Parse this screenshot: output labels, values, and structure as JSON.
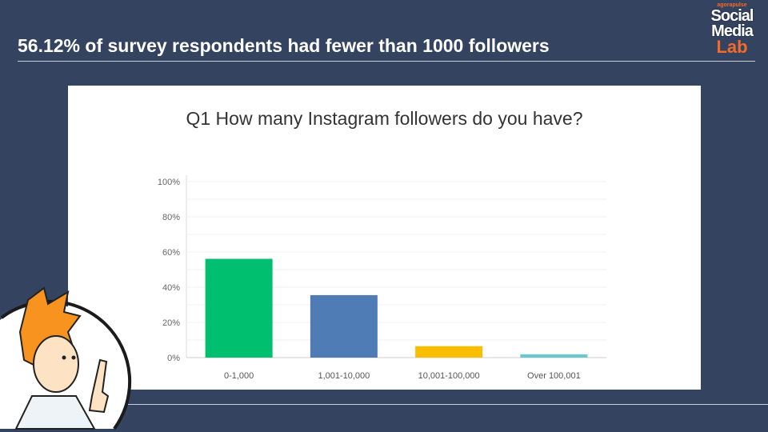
{
  "headline": "56.12% of survey respondents had fewer than 1000 followers",
  "logo": {
    "brand": "agorapulse",
    "line1": "Social",
    "line2": "Media",
    "line3": "Lab"
  },
  "chart_data": {
    "type": "bar",
    "title": "Q1 How many Instagram followers do you have?",
    "categories": [
      "0-1,000",
      "1,001-10,000",
      "10,001-100,000",
      "Over 100,001"
    ],
    "values": [
      56.12,
      35.5,
      6.5,
      1.9
    ],
    "colors": [
      "#00bf6f",
      "#507cb6",
      "#f9be00",
      "#6bc8cd"
    ],
    "ylim": [
      0,
      100
    ],
    "yticks": [
      "0%",
      "20%",
      "40%",
      "60%",
      "80%",
      "100%"
    ],
    "grid": true,
    "xlabel": "",
    "ylabel": ""
  }
}
